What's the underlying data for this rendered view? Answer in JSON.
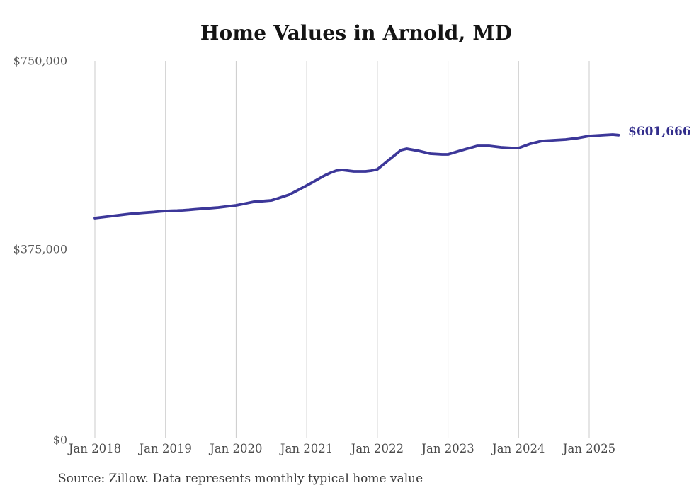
{
  "header": {
    "title": "Home Values in Arnold, MD"
  },
  "footer": {
    "source": "Source: Zillow. Data represents monthly typical home value"
  },
  "chart_data": {
    "type": "line",
    "title": "Home Values in Arnold, MD",
    "xlabel": "",
    "ylabel": "",
    "x_start": "Jan 2018",
    "x_interval": "monthly",
    "x_end": "Jun 2025",
    "x_tick_labels": [
      "Jan 2018",
      "Jan 2019",
      "Jan 2020",
      "Jan 2021",
      "Jan 2022",
      "Jan 2023",
      "Jan 2024",
      "Jan 2025"
    ],
    "y_tick_labels": [
      "$750,000",
      "$375,000",
      "$0"
    ],
    "y_tick_values": [
      750000,
      375000,
      0
    ],
    "ylim": [
      0,
      750000
    ],
    "grid": "vertical-only",
    "legend": "none",
    "line_color": "#3c3799",
    "label_color": "#332e8c",
    "grid_color": "#cbcbcb",
    "end_label": "$601,666",
    "end_value": 601666,
    "series": [
      {
        "name": "Typical home value",
        "values": [
          437400,
          438800,
          440200,
          441600,
          443000,
          444400,
          445800,
          446700,
          447700,
          448600,
          449500,
          450500,
          451400,
          451900,
          452300,
          452800,
          453700,
          454700,
          455600,
          456500,
          457500,
          458400,
          459800,
          461200,
          462600,
          464900,
          467300,
          469600,
          470500,
          471500,
          472400,
          476100,
          479900,
          483600,
          489700,
          495900,
          502000,
          508500,
          515000,
          521500,
          527000,
          531300,
          532700,
          531300,
          529900,
          529900,
          529900,
          531300,
          534000,
          543500,
          553000,
          562500,
          572000,
          574800,
          572700,
          570600,
          567800,
          565000,
          564300,
          563600,
          563600,
          567100,
          570600,
          573900,
          577200,
          580400,
          580400,
          580400,
          579000,
          577600,
          576900,
          576200,
          576200,
          580400,
          584600,
          587400,
          590200,
          590900,
          591600,
          592300,
          593000,
          594400,
          595800,
          597900,
          600000,
          600700,
          601400,
          602100,
          602800,
          601666
        ]
      }
    ]
  }
}
